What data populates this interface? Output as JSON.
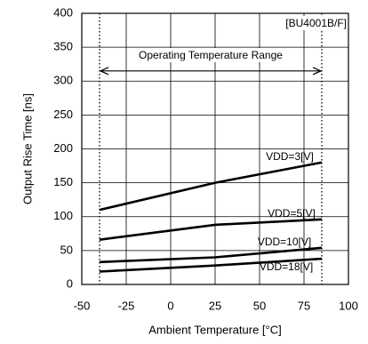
{
  "chart_data": {
    "type": "line",
    "tag": "[BU4001B/F]",
    "xlabel": "Ambient Temperature [°C]",
    "ylabel": "Output Rise Time [ns]",
    "xlim": [
      -50,
      100
    ],
    "ylim": [
      0,
      400
    ],
    "x_ticks": [
      -50,
      -25,
      0,
      25,
      50,
      75,
      100
    ],
    "y_ticks": [
      0,
      50,
      100,
      150,
      200,
      250,
      300,
      350,
      400
    ],
    "x_tick_labels": [
      "-50",
      "-25",
      "0",
      "25",
      "50",
      "75",
      "100"
    ],
    "y_tick_labels": [
      "0",
      "50",
      "100",
      "150",
      "200",
      "250",
      "300",
      "350",
      "400"
    ],
    "grid": true,
    "range_annotation": {
      "label": "Operating Temperature Range",
      "x_start": -40,
      "x_end": 85,
      "y": 315
    },
    "series": [
      {
        "name": "VDD=3[V]",
        "x": [
          -40,
          25,
          85
        ],
        "y": [
          110,
          150,
          180
        ],
        "label_x": 67,
        "label_y": 188
      },
      {
        "name": "VDD=5[V]",
        "x": [
          -40,
          25,
          85
        ],
        "y": [
          66,
          88,
          96
        ],
        "label_x": 68,
        "label_y": 104
      },
      {
        "name": "VDD=10[V]",
        "x": [
          -40,
          25,
          85
        ],
        "y": [
          33,
          40,
          54
        ],
        "label_x": 64,
        "label_y": 62
      },
      {
        "name": "VDD=18[V]",
        "x": [
          -40,
          25,
          85
        ],
        "y": [
          19,
          28,
          38
        ],
        "label_x": 65,
        "label_y": 25
      }
    ]
  }
}
